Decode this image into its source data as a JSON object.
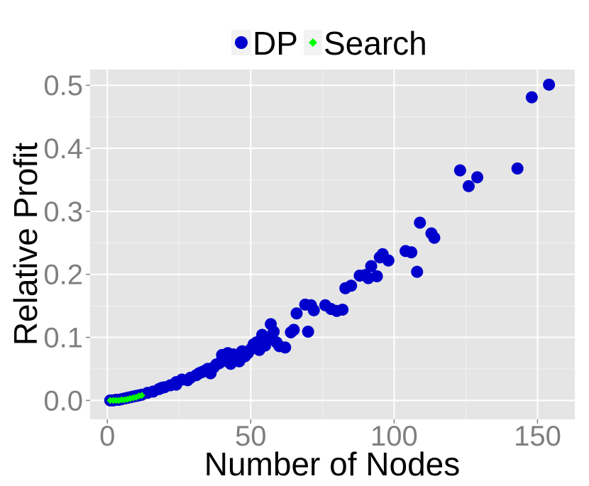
{
  "chart_data": {
    "type": "scatter",
    "xlabel": "Number of Nodes",
    "ylabel": "Relative Profit",
    "xlim": [
      -6,
      163
    ],
    "ylim": [
      -0.03,
      0.525
    ],
    "x_ticks": [
      0,
      50,
      100,
      150
    ],
    "y_ticks": [
      0.0,
      0.1,
      0.2,
      0.3,
      0.4,
      0.5
    ],
    "x_tick_labels": [
      "0",
      "50",
      "100",
      "150"
    ],
    "y_tick_labels": [
      "0.0",
      "0.1",
      "0.2",
      "0.3",
      "0.4",
      "0.5"
    ],
    "grid": true,
    "legend": {
      "placement": "top",
      "entries": [
        "DP",
        "Search"
      ]
    },
    "colors": {
      "DP": "#0000cc",
      "Search": "#00ff00",
      "panel": "#e5e5e5",
      "grid": "#ffffff"
    },
    "series": [
      {
        "name": "DP",
        "marker": "circle",
        "points": [
          [
            1,
            0.0
          ],
          [
            2,
            0.0
          ],
          [
            3,
            0.001
          ],
          [
            4,
            0.001
          ],
          [
            5,
            0.002
          ],
          [
            6,
            0.003
          ],
          [
            7,
            0.004
          ],
          [
            8,
            0.005
          ],
          [
            9,
            0.006
          ],
          [
            10,
            0.007
          ],
          [
            11,
            0.008
          ],
          [
            12,
            0.009
          ],
          [
            14,
            0.012
          ],
          [
            16,
            0.014
          ],
          [
            18,
            0.018
          ],
          [
            19,
            0.02
          ],
          [
            20,
            0.021
          ],
          [
            22,
            0.024
          ],
          [
            24,
            0.025
          ],
          [
            24,
            0.029
          ],
          [
            26,
            0.033
          ],
          [
            28,
            0.032
          ],
          [
            29,
            0.036
          ],
          [
            31,
            0.04
          ],
          [
            32,
            0.043
          ],
          [
            33,
            0.045
          ],
          [
            34,
            0.047
          ],
          [
            35,
            0.05
          ],
          [
            36,
            0.043
          ],
          [
            37,
            0.052
          ],
          [
            38,
            0.057
          ],
          [
            39,
            0.059
          ],
          [
            40,
            0.062
          ],
          [
            40,
            0.072
          ],
          [
            41,
            0.066
          ],
          [
            42,
            0.069
          ],
          [
            42,
            0.075
          ],
          [
            43,
            0.058
          ],
          [
            44,
            0.073
          ],
          [
            45,
            0.068
          ],
          [
            46,
            0.062
          ],
          [
            47,
            0.078
          ],
          [
            48,
            0.07
          ],
          [
            49,
            0.075
          ],
          [
            50,
            0.081
          ],
          [
            51,
            0.089
          ],
          [
            52,
            0.092
          ],
          [
            53,
            0.08
          ],
          [
            54,
            0.094
          ],
          [
            54,
            0.104
          ],
          [
            55,
            0.087
          ],
          [
            56,
            0.097
          ],
          [
            57,
            0.121
          ],
          [
            58,
            0.109
          ],
          [
            59,
            0.092
          ],
          [
            60,
            0.086
          ],
          [
            62,
            0.084
          ],
          [
            64,
            0.108
          ],
          [
            65,
            0.112
          ],
          [
            66,
            0.138
          ],
          [
            69,
            0.152
          ],
          [
            70,
            0.109
          ],
          [
            71,
            0.151
          ],
          [
            72,
            0.143
          ],
          [
            76,
            0.151
          ],
          [
            78,
            0.145
          ],
          [
            80,
            0.142
          ],
          [
            82,
            0.144
          ],
          [
            83,
            0.178
          ],
          [
            85,
            0.182
          ],
          [
            88,
            0.198
          ],
          [
            90,
            0.199
          ],
          [
            91,
            0.194
          ],
          [
            92,
            0.213
          ],
          [
            94,
            0.197
          ],
          [
            95,
            0.227
          ],
          [
            96,
            0.232
          ],
          [
            98,
            0.222
          ],
          [
            104,
            0.237
          ],
          [
            106,
            0.235
          ],
          [
            108,
            0.204
          ],
          [
            109,
            0.282
          ],
          [
            113,
            0.265
          ],
          [
            114,
            0.258
          ],
          [
            123,
            0.365
          ],
          [
            126,
            0.34
          ],
          [
            129,
            0.354
          ],
          [
            143,
            0.368
          ],
          [
            148,
            0.481
          ],
          [
            154,
            0.501
          ]
        ]
      },
      {
        "name": "Search",
        "marker": "diamond",
        "points": [
          [
            1,
            0.0
          ],
          [
            2,
            0.0
          ],
          [
            3,
            0.0
          ],
          [
            4,
            0.0
          ],
          [
            5,
            0.001
          ],
          [
            6,
            0.001
          ],
          [
            7,
            0.002
          ],
          [
            8,
            0.003
          ],
          [
            9,
            0.004
          ],
          [
            10,
            0.005
          ],
          [
            11,
            0.007
          ],
          [
            12,
            0.008
          ]
        ]
      }
    ]
  }
}
